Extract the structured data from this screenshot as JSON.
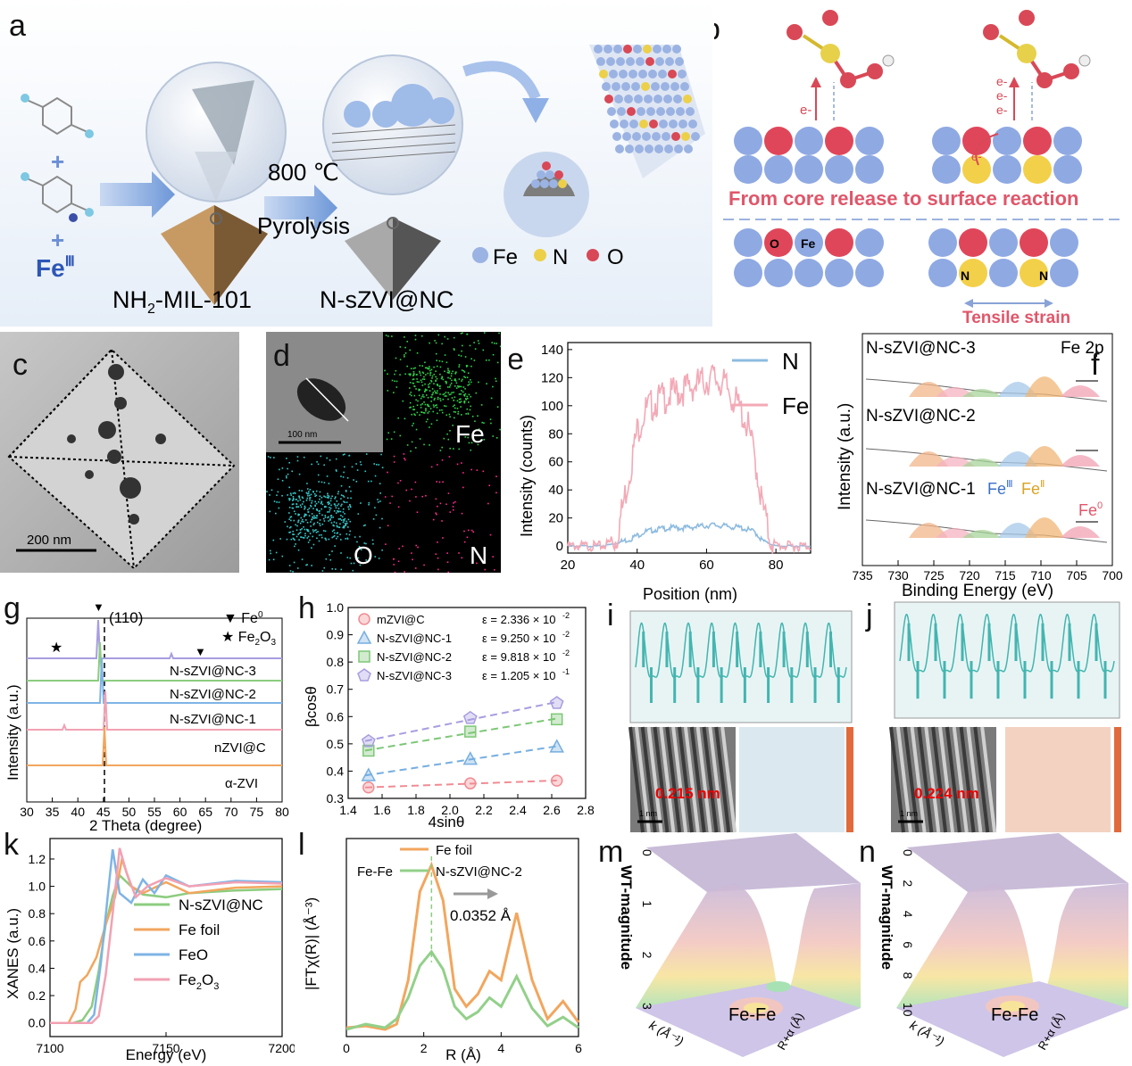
{
  "labels": {
    "a": "a",
    "b": "b",
    "c": "c",
    "d": "d",
    "e": "e",
    "f": "f",
    "g": "g",
    "h": "h",
    "i": "i",
    "j": "j",
    "k": "k",
    "l": "l",
    "m": "m",
    "n": "n"
  },
  "panel_a": {
    "feiii": "FeIII",
    "mil_prefix": "NH",
    "mil_sub": "2",
    "mil_suffix": "-MIL-101",
    "temp": "800 ℃",
    "pyrolysis": "Pyrolysis",
    "product": "N-sZVI@NC",
    "legend": [
      "Fe",
      "N",
      "O"
    ],
    "legend_colors": [
      "#9bb3e3",
      "#ecd04a",
      "#d94856"
    ]
  },
  "panel_b": {
    "e1": "e-",
    "e_multi": [
      "e-",
      "e-",
      "e-"
    ],
    "e_curve": "e-",
    "core_text": "From core release to surface reaction",
    "O": "O",
    "Fe": "Fe",
    "N1": "N",
    "N2": "N",
    "tensile": "Tensile strain"
  },
  "panel_c": {
    "scale": "200 nm"
  },
  "panel_d": {
    "scale": "100 nm",
    "Fe": "Fe",
    "O": "O",
    "N": "N"
  },
  "panel_f": {
    "samples": [
      "N-sZVI@NC-3",
      "N-sZVI@NC-2",
      "N-sZVI@NC-1"
    ],
    "title": "Fe 2p",
    "fe3": "FeIII",
    "fe2": "FeII",
    "fe0": "Fe0",
    "ylabel": "Intensity (a.u.)",
    "xlabel": "Binding Energy (eV)",
    "ticks": [
      "735",
      "730",
      "725",
      "720",
      "715",
      "710",
      "705",
      "700"
    ]
  },
  "panel_g": {
    "plane": "(110)",
    "legend1": "Fe0",
    "legend2": "Fe2O3",
    "samples": [
      "N-sZVI@NC-3",
      "N-sZVI@NC-2",
      "N-sZVI@NC-1",
      "nZVI@C",
      "α-ZVI"
    ],
    "ylabel": "Intensity (a.u.)",
    "xlabel": "2 Theta (degree)",
    "ticks": [
      "30",
      "35",
      "40",
      "45",
      "50",
      "55",
      "60",
      "65",
      "70",
      "75",
      "80"
    ]
  },
  "panel_i": {
    "measure": "0.215 nm",
    "scale": "1 nm"
  },
  "panel_j": {
    "measure": "0.224 nm",
    "scale": "1 nm"
  },
  "panel_m": {
    "zlabel": "WT-magnitude",
    "ticks": [
      "0",
      "1",
      "2",
      "3"
    ],
    "peak": "Fe-Fe",
    "klabel": "k (Å⁻¹)",
    "rlabel": "R+α (Å)"
  },
  "panel_n": {
    "zlabel": "WT-magnitude",
    "ticks": [
      "0",
      "2",
      "4",
      "6",
      "8",
      "10"
    ],
    "peak": "Fe-Fe",
    "klabel": "k (Å⁻¹)",
    "rlabel": "R+α (Å)"
  },
  "chart_data": [
    {
      "id": "e",
      "type": "line",
      "xlabel": "Position (nm)",
      "ylabel": "Intensity (counts)",
      "xlim": [
        20,
        90
      ],
      "ylim": [
        -5,
        145
      ],
      "xticks": [
        20,
        40,
        60,
        80
      ],
      "yticks": [
        0,
        20,
        40,
        60,
        80,
        100,
        120,
        140
      ],
      "series": [
        {
          "name": "N",
          "color": "#8dbbe0",
          "x": [
            20,
            30,
            34,
            38,
            42,
            46,
            50,
            54,
            58,
            62,
            66,
            70,
            74,
            76,
            80,
            90
          ],
          "y": [
            0,
            0,
            2,
            5,
            10,
            12,
            13,
            13,
            14,
            15,
            14,
            13,
            10,
            4,
            0,
            0
          ]
        },
        {
          "name": "Fe",
          "color": "#f3a9b6",
          "x": [
            20,
            30,
            34,
            36,
            38,
            40,
            42,
            44,
            46,
            48,
            50,
            52,
            54,
            56,
            58,
            60,
            62,
            64,
            66,
            68,
            70,
            72,
            74,
            76,
            78,
            80,
            90
          ],
          "y": [
            0,
            0,
            5,
            30,
            55,
            82,
            95,
            100,
            104,
            106,
            108,
            110,
            112,
            114,
            116,
            118,
            120,
            117,
            112,
            104,
            96,
            84,
            62,
            30,
            8,
            0,
            0
          ]
        }
      ]
    },
    {
      "id": "h",
      "type": "scatter",
      "xlabel": "4sinθ",
      "ylabel": "βcosθ",
      "xlim": [
        1.4,
        2.8
      ],
      "ylim": [
        0.3,
        1.0
      ],
      "xticks": [
        1.4,
        1.6,
        1.8,
        2.0,
        2.2,
        2.4,
        2.6,
        2.8
      ],
      "yticks": [
        0.3,
        0.4,
        0.5,
        0.6,
        0.7,
        0.8,
        0.9,
        1.0
      ],
      "series": [
        {
          "name": "mZVI@C",
          "eps": "ε = 2.336 × 10",
          "exp": "-2",
          "color": "#f08c93",
          "x": [
            1.52,
            2.12,
            2.63
          ],
          "y": [
            0.34,
            0.355,
            0.365
          ]
        },
        {
          "name": "N-sZVI@NC-1",
          "eps": "ε = 9.250 × 10",
          "exp": "-2",
          "color": "#76aee0",
          "x": [
            1.52,
            2.12,
            2.63
          ],
          "y": [
            0.385,
            0.445,
            0.49
          ]
        },
        {
          "name": "N-sZVI@NC-2",
          "eps": "ε = 9.818 × 10",
          "exp": "-2",
          "color": "#7dc776",
          "x": [
            1.52,
            2.12,
            2.63
          ],
          "y": [
            0.475,
            0.545,
            0.59
          ]
        },
        {
          "name": "N-sZVI@NC-3",
          "eps": "ε = 1.205 × 10",
          "exp": "-1",
          "color": "#a89de0",
          "x": [
            1.52,
            2.12,
            2.63
          ],
          "y": [
            0.51,
            0.595,
            0.65
          ]
        }
      ]
    },
    {
      "id": "k",
      "type": "line",
      "xlabel": "Energy (eV)",
      "ylabel": "XANES (a.u.)",
      "xlim": [
        7100,
        7200
      ],
      "ylim": [
        -0.1,
        1.35
      ],
      "xticks": [
        7100,
        7150,
        7200
      ],
      "yticks": [
        0.0,
        0.2,
        0.4,
        0.6,
        0.8,
        1.0,
        1.2
      ],
      "series": [
        {
          "name": "N-sZVI@NC",
          "color": "#8ccc7f",
          "x": [
            7100,
            7110,
            7114,
            7118,
            7121,
            7124,
            7127,
            7130,
            7135,
            7140,
            7150,
            7160,
            7180,
            7200
          ],
          "y": [
            0,
            0,
            0.02,
            0.12,
            0.38,
            0.72,
            0.93,
            1.08,
            1.0,
            0.94,
            0.92,
            0.95,
            0.97,
            0.98
          ]
        },
        {
          "name": "Fe foil",
          "color": "#f2a65e",
          "x": [
            7100,
            7108,
            7111,
            7113,
            7116,
            7120,
            7124,
            7128,
            7131,
            7135,
            7140,
            7150,
            7160,
            7180,
            7200
          ],
          "y": [
            0,
            0,
            0.1,
            0.3,
            0.35,
            0.48,
            0.72,
            0.92,
            1.2,
            1.0,
            0.95,
            1.03,
            0.95,
            0.99,
            1.0
          ]
        },
        {
          "name": "FeO",
          "color": "#7eb4e6",
          "x": [
            7100,
            7116,
            7119,
            7122,
            7125,
            7127,
            7130,
            7135,
            7140,
            7145,
            7150,
            7160,
            7180,
            7200
          ],
          "y": [
            0,
            0,
            0.06,
            0.45,
            0.95,
            1.27,
            0.95,
            0.88,
            1.05,
            0.95,
            1.08,
            1.0,
            1.04,
            1.03
          ]
        },
        {
          "name": "Fe2O3",
          "color": "#f2a1b3",
          "x": [
            7100,
            7118,
            7121,
            7124,
            7127,
            7130,
            7133,
            7137,
            7142,
            7150,
            7160,
            7180,
            7200
          ],
          "y": [
            0,
            0,
            0.05,
            0.35,
            0.8,
            1.28,
            1.1,
            0.92,
            1.0,
            1.06,
            1.0,
            1.03,
            1.02
          ]
        }
      ]
    },
    {
      "id": "l",
      "type": "line",
      "xlabel": "R (Å)",
      "ylabel": "|FTχ(R)| (Å⁻³)",
      "xlim": [
        0,
        6
      ],
      "xticks": [
        0,
        2,
        4,
        6
      ],
      "annotations": [
        "Fe-Fe",
        "0.0352 Å"
      ],
      "series": [
        {
          "name": "Fe foil",
          "color": "#f2a65e",
          "x": [
            0,
            0.5,
            1.0,
            1.3,
            1.6,
            1.9,
            2.2,
            2.5,
            2.8,
            3.1,
            3.4,
            3.7,
            4.0,
            4.4,
            4.8,
            5.2,
            5.6,
            6.0
          ],
          "y": [
            0.3,
            0.4,
            0.2,
            0.5,
            3.0,
            8.0,
            9.5,
            7.5,
            2.5,
            1.5,
            2.2,
            3.5,
            3.0,
            6.8,
            3.0,
            0.8,
            1.8,
            0.6
          ]
        },
        {
          "name": "N-sZVI@NC-2",
          "color": "#93d08a",
          "x": [
            0,
            0.5,
            1.0,
            1.3,
            1.6,
            1.9,
            2.2,
            2.5,
            2.8,
            3.1,
            3.4,
            3.7,
            4.0,
            4.4,
            4.8,
            5.2,
            5.6,
            6.0
          ],
          "y": [
            0.2,
            0.5,
            0.3,
            0.8,
            2.0,
            3.8,
            4.6,
            3.6,
            1.5,
            0.8,
            1.2,
            2.0,
            1.5,
            3.2,
            1.4,
            0.4,
            0.9,
            0.3
          ]
        }
      ]
    }
  ]
}
